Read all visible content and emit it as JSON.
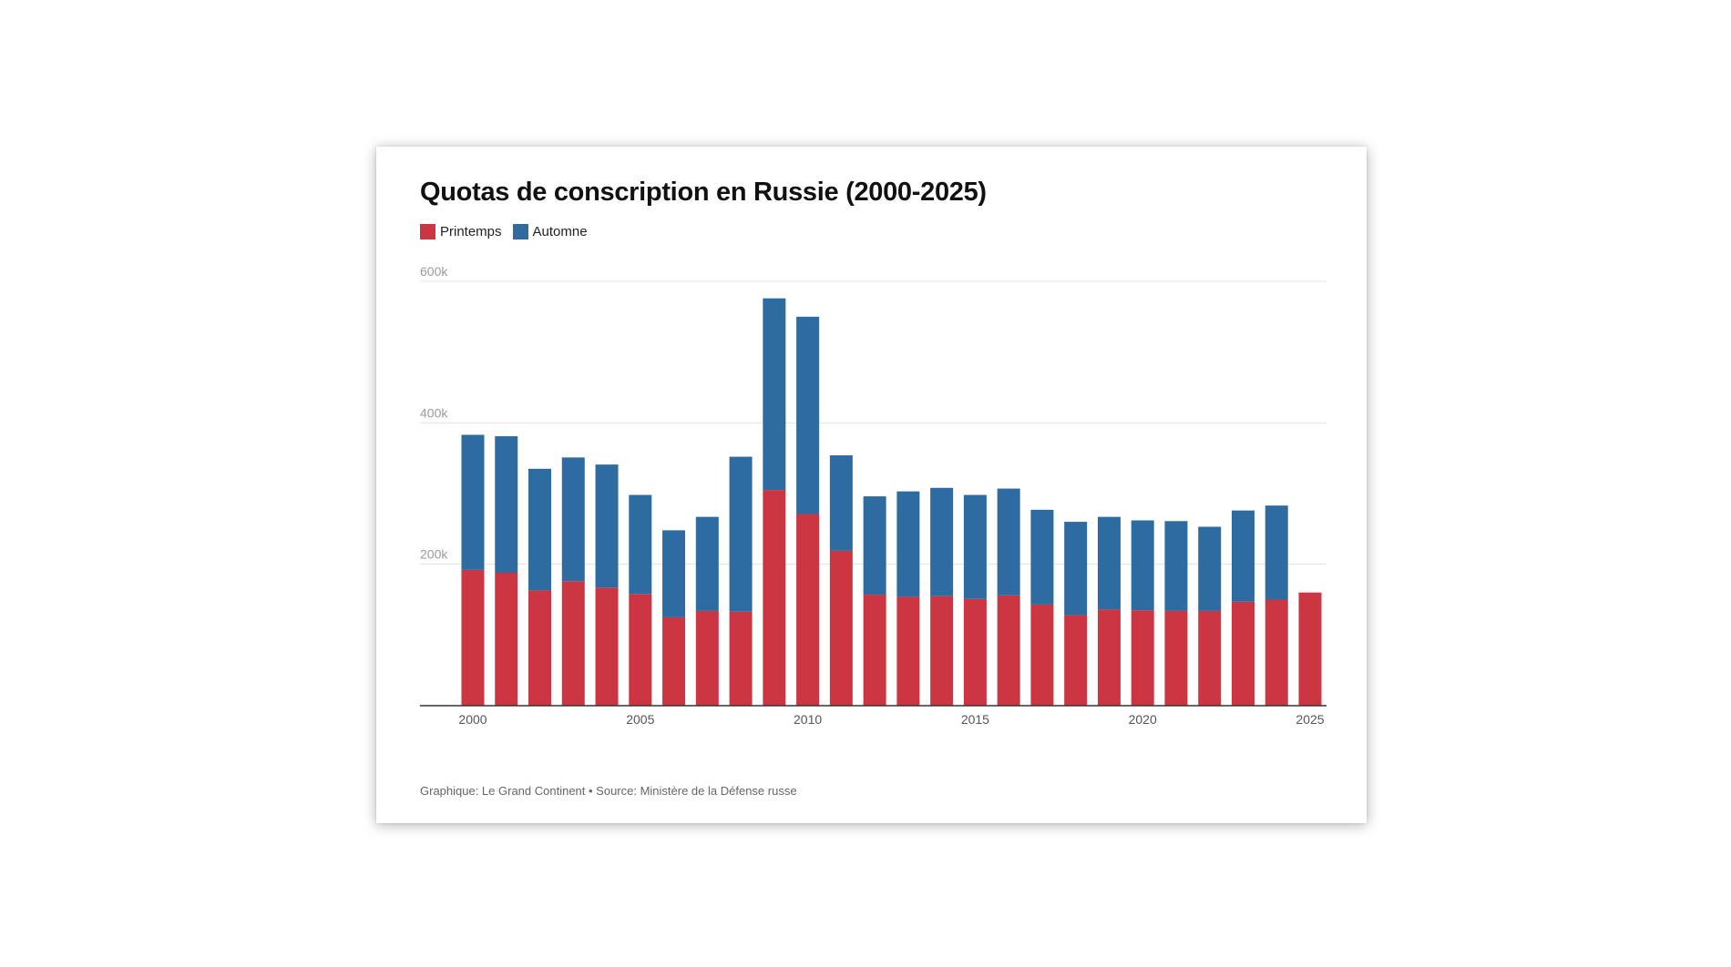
{
  "chart_data": {
    "type": "bar",
    "stacked": true,
    "title": "Quotas de conscription en Russie (2000-2025)",
    "xlabel": "",
    "ylabel": "",
    "ylim": [
      0,
      600000
    ],
    "y_ticks": [
      {
        "value": 200000,
        "label": "200k"
      },
      {
        "value": 400000,
        "label": "400k"
      },
      {
        "value": 600000,
        "label": "600k"
      }
    ],
    "x_tick_labels": [
      "2000",
      "2005",
      "2010",
      "2015",
      "2020",
      "2025"
    ],
    "categories": [
      "2000",
      "2001",
      "2002",
      "2003",
      "2004",
      "2005",
      "2006",
      "2007",
      "2008",
      "2009",
      "2010",
      "2011",
      "2012",
      "2013",
      "2014",
      "2015",
      "2016",
      "2017",
      "2018",
      "2019",
      "2020",
      "2021",
      "2022",
      "2023",
      "2024",
      "2025"
    ],
    "series": [
      {
        "name": "Printemps",
        "color": "#cc3542",
        "values": [
          192000,
          188000,
          163000,
          176000,
          167000,
          158000,
          125000,
          134000,
          133000,
          305000,
          271000,
          219000,
          157000,
          154000,
          155000,
          151000,
          156000,
          143000,
          128000,
          136000,
          135000,
          134000,
          134000,
          147000,
          150000,
          160000
        ]
      },
      {
        "name": "Automne",
        "color": "#2e6ba1",
        "values": [
          191000,
          193000,
          172000,
          175000,
          174000,
          140000,
          123000,
          133000,
          219000,
          271000,
          279000,
          135000,
          139000,
          149000,
          153000,
          147000,
          151000,
          134000,
          132000,
          131000,
          127000,
          127000,
          119000,
          129000,
          133000,
          0
        ]
      }
    ],
    "grid": true,
    "legend_position": "top-left"
  },
  "legend": [
    {
      "label": "Printemps",
      "color": "#cc3542"
    },
    {
      "label": "Automne",
      "color": "#2e6ba1"
    }
  ],
  "footer": "Graphique: Le Grand Continent • Source: Ministère de la Défense russe"
}
